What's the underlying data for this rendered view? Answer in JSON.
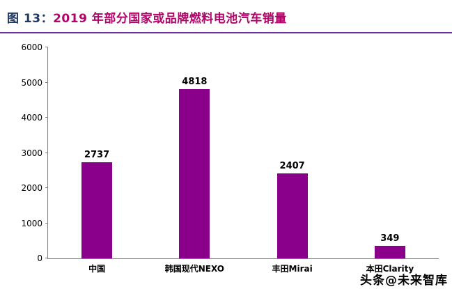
{
  "figure": {
    "number_label": "图 13：",
    "title": "2019 年部分国家或品牌燃料电池汽车销量"
  },
  "watermark": "头条@未来智库",
  "colors": {
    "title_number": "#1F3864",
    "title_text": "#B00468",
    "title_rule": "#7030A0",
    "bar": "#8B008B",
    "axis": "#808080",
    "label": "#000000"
  },
  "chart_data": {
    "type": "bar",
    "categories": [
      "中国",
      "韩国现代NEXO",
      "丰田Mirai",
      "本田Clarity"
    ],
    "values": [
      2737,
      4818,
      2407,
      349
    ],
    "data_labels": [
      "2737",
      "4818",
      "2407",
      "349"
    ],
    "title": "2019 年部分国家或品牌燃料电池汽车销量",
    "xlabel": "",
    "ylabel": "",
    "ylim": [
      0,
      6000
    ],
    "ytick_step": 1000,
    "ytick_labels": [
      "0",
      "1000",
      "2000",
      "3000",
      "4000",
      "5000",
      "6000"
    ],
    "grid": false,
    "legend": false,
    "bar_color": "#8B008B"
  }
}
